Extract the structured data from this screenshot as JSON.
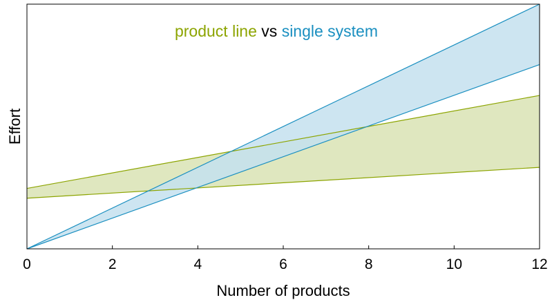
{
  "chart_data": {
    "type": "area",
    "title_parts": [
      {
        "text": "product line",
        "color": "#8ca400"
      },
      {
        "text": " vs ",
        "color": "#000000"
      },
      {
        "text": "single system",
        "color": "#1a8fc0"
      }
    ],
    "xlabel": "Number of products",
    "ylabel": "Effort",
    "xlim": [
      0,
      12
    ],
    "ylim": [
      0,
      100
    ],
    "x_ticks": [
      0,
      2,
      4,
      6,
      8,
      10,
      12
    ],
    "grid": false,
    "series": [
      {
        "name": "product line",
        "color": "#8ca400",
        "fill": "#dfe7bf",
        "x": [
          0,
          12
        ],
        "upper": [
          24.7,
          62.7
        ],
        "lower": [
          20.7,
          33.3
        ]
      },
      {
        "name": "single system",
        "color": "#1a8fc0",
        "fill": "#c4e0ee",
        "x": [
          0,
          12
        ],
        "upper": [
          0,
          100
        ],
        "lower": [
          0,
          75.3
        ]
      }
    ]
  }
}
